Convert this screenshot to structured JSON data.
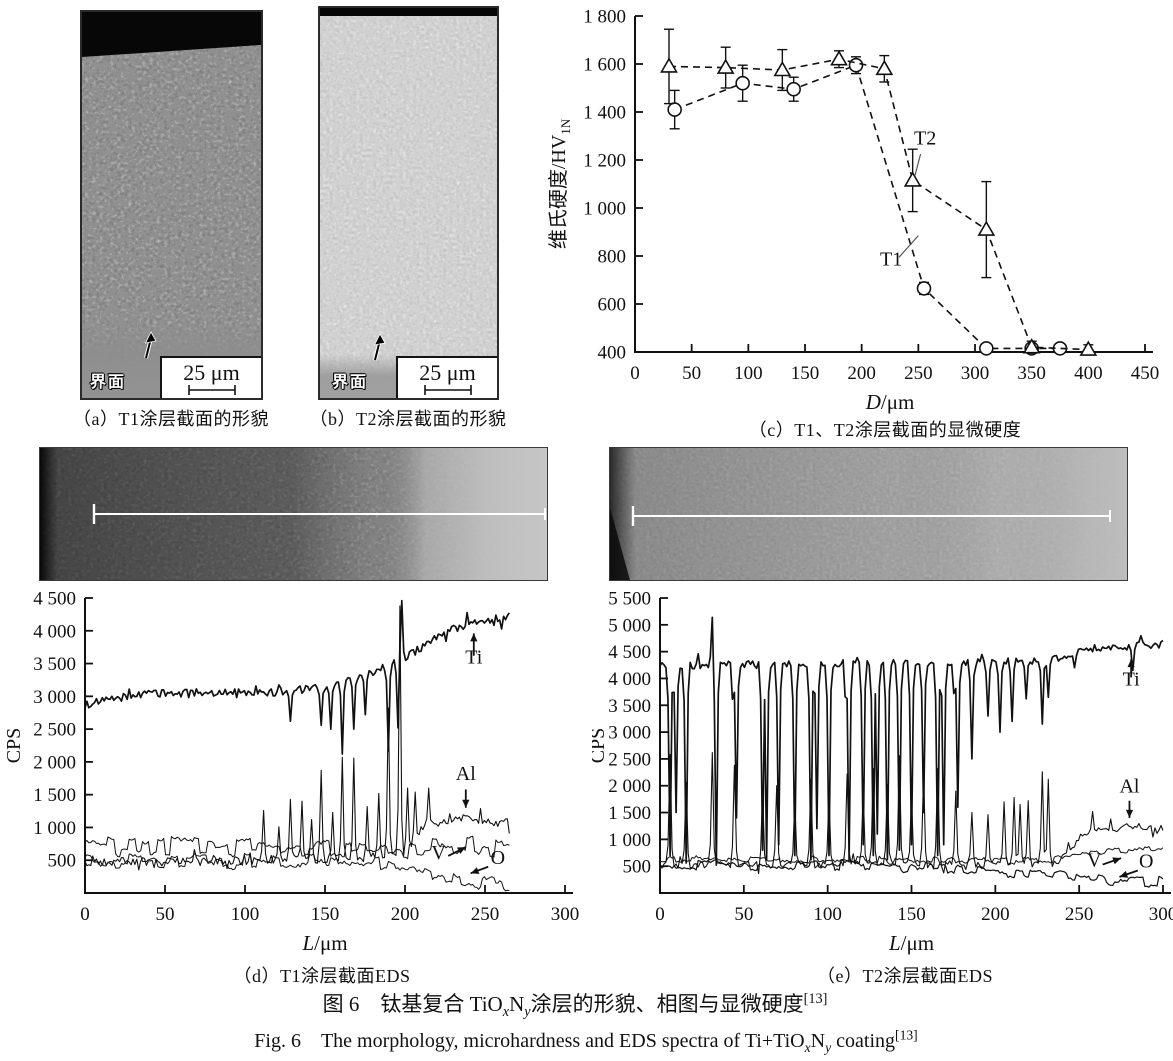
{
  "figure": {
    "caption_cn_html": "图 6&#12288;钛基复合 TiO<sub><i>x</i></sub>N<sub><i>y</i></sub>涂层的形貌、相图与显微硬度<sup>[13]</sup>",
    "caption_en_html": "Fig. 6&#12288;The morphology, microhardness and EDS spectra of Ti+TiO<sub><i>x</i></sub>N<sub><i>y</i></sub> coating<sup>[13]</sup>"
  },
  "panels": {
    "a": {
      "caption": "（a）T1涂层截面的形貌",
      "interface_label": "界面",
      "scalebar": "25 μm"
    },
    "b": {
      "caption": "（b）T2涂层截面的形貌",
      "interface_label": "界面",
      "scalebar": "25 μm"
    },
    "c": {
      "caption": "（c）T1、T2涂层截面的显微硬度"
    },
    "d": {
      "caption": "（d）T1涂层截面EDS"
    },
    "e": {
      "caption": "（e）T2涂层截面EDS"
    }
  },
  "chart_data": [
    {
      "id": "hardness",
      "panel": "c",
      "type": "line",
      "title": "T1/T2 coating cross-section microhardness",
      "xlabel_italic": "D",
      "xlabel_rest": "/μm",
      "ylabel_main": "维氏硬度/HV",
      "ylabel_sub": "1N",
      "xlim": [
        0,
        450
      ],
      "xtick_step": 50,
      "ylim": [
        400,
        1800
      ],
      "ytick_step": 200,
      "grid": false,
      "legend": "inline annotations",
      "series": [
        {
          "name": "T1",
          "marker": "circle",
          "dash": true,
          "x": [
            35,
            95,
            140,
            195,
            255,
            310,
            350,
            375
          ],
          "y": [
            1410,
            1520,
            1495,
            1595,
            665,
            415,
            415,
            415
          ],
          "err": [
            80,
            75,
            50,
            35,
            25,
            15,
            15,
            15
          ]
        },
        {
          "name": "T2",
          "marker": "triangle",
          "dash": true,
          "x": [
            30,
            80,
            130,
            180,
            220,
            245,
            310,
            350,
            400
          ],
          "y": [
            1590,
            1585,
            1575,
            1620,
            1580,
            1115,
            910,
            420,
            410
          ],
          "err": [
            155,
            85,
            85,
            35,
            55,
            130,
            200,
            25,
            20
          ]
        }
      ],
      "annotations": [
        {
          "text": "T2",
          "tx": 256,
          "ty": 1265,
          "lx1": 252,
          "ly1": 1225,
          "lx2": 247,
          "ly2": 1135
        },
        {
          "text": "T1",
          "tx": 226,
          "ty": 760,
          "lx1": 233,
          "ly1": 795,
          "lx2": 250,
          "ly2": 885
        }
      ]
    },
    {
      "id": "eds_t1",
      "panel": "d",
      "type": "line",
      "title": "T1 coating cross-section EDS line scan",
      "xlabel_italic": "L",
      "xlabel_rest": "/μm",
      "ylabel_main": "CPS",
      "ylabel_sub": "",
      "xlim": [
        0,
        300
      ],
      "xtick_step": 50,
      "ylim": [
        0,
        4500
      ],
      "ytick_step": 500,
      "ytick_min": 500,
      "xdata_max": 266,
      "grid": false,
      "series": [
        {
          "name": "Ti",
          "width": 1.7,
          "noise": 110,
          "base": [
            [
              0,
              2870
            ],
            [
              30,
              3020
            ],
            [
              70,
              3060
            ],
            [
              110,
              3050
            ],
            [
              150,
              3130
            ],
            [
              170,
              3300
            ],
            [
              185,
              3430
            ],
            [
              200,
              3580
            ],
            [
              215,
              3830
            ],
            [
              230,
              4030
            ],
            [
              250,
              4150
            ],
            [
              266,
              4220
            ]
          ],
          "spikes": [
            [
              128,
              2620
            ],
            [
              147,
              2560
            ],
            [
              154,
              2500
            ],
            [
              161,
              2120
            ],
            [
              168,
              2500
            ],
            [
              175,
              2720
            ],
            [
              190,
              2160
            ],
            [
              196,
              2520
            ],
            [
              198,
              4460
            ]
          ]
        },
        {
          "name": "Al",
          "width": 1.1,
          "noise": 120,
          "base": [
            [
              0,
              470
            ],
            [
              60,
              480
            ],
            [
              120,
              500
            ],
            [
              170,
              520
            ],
            [
              200,
              600
            ],
            [
              212,
              1020
            ],
            [
              225,
              1090
            ],
            [
              240,
              1150
            ],
            [
              255,
              1090
            ],
            [
              266,
              1060
            ]
          ],
          "spikes": [
            [
              111,
              1260
            ],
            [
              121,
              1010
            ],
            [
              128,
              1430
            ],
            [
              135,
              1400
            ],
            [
              141,
              1120
            ],
            [
              148,
              1870
            ],
            [
              155,
              1230
            ],
            [
              161,
              2070
            ],
            [
              168,
              2060
            ],
            [
              176,
              1320
            ],
            [
              183,
              1520
            ],
            [
              190,
              2820
            ],
            [
              197,
              4380
            ],
            [
              202,
              1600
            ],
            [
              206,
              1540
            ],
            [
              215,
              1600
            ]
          ]
        },
        {
          "name": "V",
          "width": 1.0,
          "noise": 150,
          "blocky": true,
          "base": [
            [
              0,
              720
            ],
            [
              80,
              710
            ],
            [
              150,
              690
            ],
            [
              200,
              620
            ],
            [
              215,
              690
            ],
            [
              240,
              715
            ],
            [
              266,
              720
            ]
          ],
          "spikes": []
        },
        {
          "name": "O",
          "width": 1.0,
          "noise": 110,
          "blocky": true,
          "base": [
            [
              0,
              470
            ],
            [
              120,
              480
            ],
            [
              185,
              460
            ],
            [
              200,
              420
            ],
            [
              210,
              380
            ],
            [
              222,
              290
            ],
            [
              235,
              210
            ],
            [
              250,
              170
            ],
            [
              266,
              150
            ]
          ],
          "spikes": []
        }
      ],
      "labels": [
        {
          "text": "Ti",
          "tx": 243,
          "ty": 3500,
          "arrow": [
            243,
            3620,
            243,
            3960
          ]
        },
        {
          "text": "Al",
          "tx": 238,
          "ty": 1720,
          "arrow": [
            238,
            1580,
            238,
            1300
          ]
        },
        {
          "text": "V",
          "tx": 221,
          "ty": 520,
          "arrow": [
            227,
            565,
            238,
            700
          ]
        },
        {
          "text": "O",
          "tx": 258,
          "ty": 440,
          "arrow": [
            252,
            400,
            241,
            300
          ]
        }
      ]
    },
    {
      "id": "eds_t2",
      "panel": "e",
      "type": "line",
      "title": "T2 coating cross-section EDS line scan",
      "xlabel_italic": "L",
      "xlabel_rest": "/μm",
      "ylabel_main": "CPS",
      "ylabel_sub": "",
      "xlim": [
        0,
        300
      ],
      "xtick_step": 50,
      "ylim": [
        0,
        5500
      ],
      "ytick_step": 500,
      "ytick_min": 500,
      "xdata_max": 300,
      "grid": false,
      "series": [
        {
          "name": "Ti",
          "width": 1.7,
          "noise": 130,
          "base": [
            [
              0,
              4230
            ],
            [
              100,
              4280
            ],
            [
              200,
              4300
            ],
            [
              240,
              4380
            ],
            [
              255,
              4560
            ],
            [
              300,
              4640
            ]
          ],
          "spikes": [
            [
              31,
              5140
            ],
            [
              6,
              700
            ],
            [
              9,
              1500
            ],
            [
              16,
              560
            ],
            [
              33,
              520
            ],
            [
              44,
              700
            ],
            [
              46,
              1400
            ],
            [
              61,
              800
            ],
            [
              63,
              620
            ],
            [
              71,
              900
            ],
            [
              80,
              700
            ],
            [
              90,
              620
            ],
            [
              93,
              1200
            ],
            [
              101,
              700
            ],
            [
              111,
              820
            ],
            [
              113,
              620
            ],
            [
              121,
              900
            ],
            [
              127,
              700
            ],
            [
              130,
              1100
            ],
            [
              136,
              620
            ],
            [
              143,
              800
            ],
            [
              150,
              900
            ],
            [
              157,
              1500
            ],
            [
              166,
              700
            ],
            [
              169,
              900
            ],
            [
              176,
              1100
            ],
            [
              178,
              1600
            ],
            [
              186,
              2500
            ],
            [
              195,
              3300
            ],
            [
              203,
              3000
            ],
            [
              210,
              3200
            ],
            [
              218,
              3620
            ],
            [
              228,
              3150
            ],
            [
              232,
              3650
            ],
            [
              247,
              4200
            ],
            [
              282,
              4150
            ]
          ]
        },
        {
          "name": "Al",
          "width": 1.1,
          "noise": 120,
          "base": [
            [
              0,
              520
            ],
            [
              100,
              530
            ],
            [
              180,
              540
            ],
            [
              210,
              520
            ],
            [
              235,
              520
            ],
            [
              252,
              1080
            ],
            [
              265,
              1180
            ],
            [
              285,
              1250
            ],
            [
              300,
              1200
            ]
          ],
          "spikes": [
            [
              6,
              2580
            ],
            [
              16,
              2060
            ],
            [
              31,
              2620
            ],
            [
              44,
              2380
            ],
            [
              61,
              1900
            ],
            [
              70,
              2000
            ],
            [
              80,
              1720
            ],
            [
              90,
              2120
            ],
            [
              101,
              1820
            ],
            [
              111,
              2220
            ],
            [
              121,
              1900
            ],
            [
              127,
              2320
            ],
            [
              136,
              2020
            ],
            [
              143,
              2560
            ],
            [
              150,
              1820
            ],
            [
              157,
              2220
            ],
            [
              166,
              2320
            ],
            [
              176,
              1900
            ],
            [
              186,
              1500
            ],
            [
              196,
              1460
            ],
            [
              205,
              1700
            ],
            [
              211,
              1780
            ],
            [
              215,
              1650
            ],
            [
              220,
              1720
            ],
            [
              228,
              2260
            ],
            [
              232,
              2120
            ],
            [
              258,
              1520
            ]
          ]
        },
        {
          "name": "V",
          "width": 1.0,
          "noise": 60,
          "blocky": true,
          "base": [
            [
              0,
              620
            ],
            [
              120,
              620
            ],
            [
              200,
              600
            ],
            [
              240,
              640
            ],
            [
              252,
              760
            ],
            [
              300,
              800
            ]
          ],
          "spikes": []
        },
        {
          "name": "O",
          "width": 1.2,
          "noise": 95,
          "blocky": true,
          "base": [
            [
              0,
              520
            ],
            [
              120,
              500
            ],
            [
              160,
              470
            ],
            [
              185,
              420
            ],
            [
              200,
              380
            ],
            [
              230,
              360
            ],
            [
              250,
              330
            ],
            [
              270,
              250
            ],
            [
              300,
              195
            ]
          ],
          "spikes": []
        }
      ],
      "labels": [
        {
          "text": "Ti",
          "tx": 281,
          "ty": 3870,
          "arrow": [
            281,
            4020,
            281,
            4360
          ]
        },
        {
          "text": "Al",
          "tx": 280,
          "ty": 1870,
          "arrow": [
            280,
            1720,
            280,
            1400
          ]
        },
        {
          "text": "V",
          "tx": 259,
          "ty": 490,
          "arrow": [
            264,
            530,
            275,
            650
          ]
        },
        {
          "text": "O",
          "tx": 290,
          "ty": 480,
          "arrow": [
            285,
            420,
            274,
            300
          ]
        }
      ]
    }
  ]
}
